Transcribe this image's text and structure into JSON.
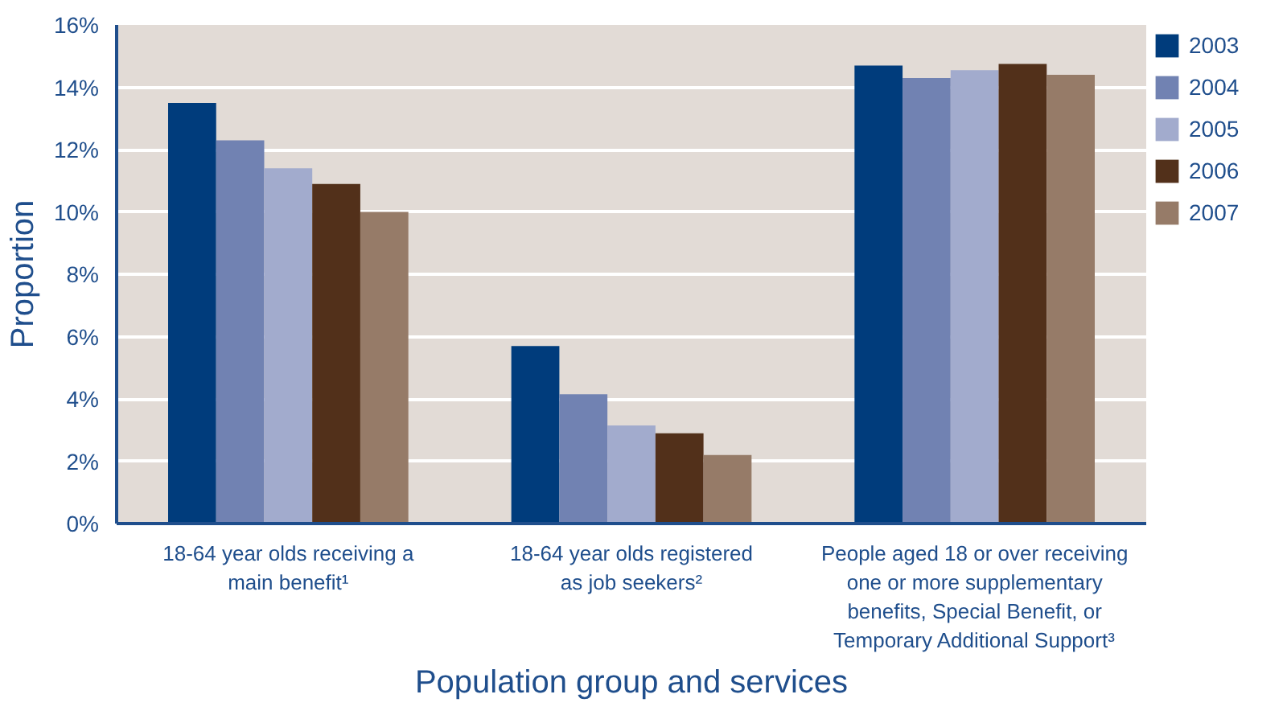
{
  "chart_data": {
    "type": "bar",
    "xlabel": "Population group and services",
    "ylabel": "Proportion",
    "categories": [
      "18-64 year olds receiving a\nmain benefit¹",
      "18-64 year olds registered\nas job seekers²",
      "People aged 18 or over receiving\none or more supplementary\nbenefits, Special Benefit, or\nTemporary Additional Support³"
    ],
    "series": [
      {
        "name": "2003",
        "color": "#003c7c",
        "values": [
          13.5,
          5.7,
          14.7
        ]
      },
      {
        "name": "2004",
        "color": "#7182b2",
        "values": [
          12.3,
          4.15,
          14.3
        ]
      },
      {
        "name": "2005",
        "color": "#a2abcd",
        "values": [
          11.4,
          3.15,
          14.55
        ]
      },
      {
        "name": "2006",
        "color": "#52301a",
        "values": [
          10.9,
          2.9,
          14.75
        ]
      },
      {
        "name": "2007",
        "color": "#967b68",
        "values": [
          10.0,
          2.2,
          14.4
        ]
      }
    ],
    "ylim": [
      0,
      16
    ],
    "yticks": [
      {
        "value": 0,
        "label": "0%"
      },
      {
        "value": 2,
        "label": "2%"
      },
      {
        "value": 4,
        "label": "4%"
      },
      {
        "value": 6,
        "label": "6%"
      },
      {
        "value": 8,
        "label": "8%"
      },
      {
        "value": 10,
        "label": "10%"
      },
      {
        "value": 12,
        "label": "12%"
      },
      {
        "value": 14,
        "label": "14%"
      },
      {
        "value": 16,
        "label": "16%"
      }
    ],
    "grid": "y",
    "legend": "right"
  }
}
